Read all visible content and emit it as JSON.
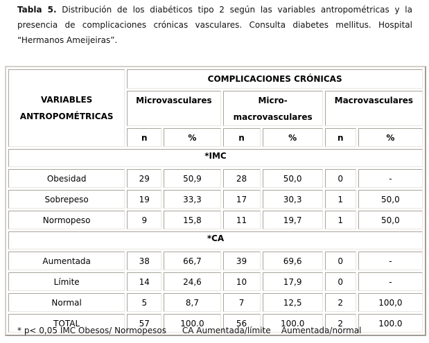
{
  "caption": {
    "label": "Tabla 5.",
    "text": " Distribución de los diabéticos tipo 2 según las variables antropométricas y la presencia de complicaciones crónicas vasculares. Consulta diabetes mellitus. Hospital “Hermanos Ameijeiras”."
  },
  "header": {
    "variables": "VARIABLES ANTROPOMÉTRICAS",
    "group": "COMPLICACIONES CRÓNICAS",
    "cols": [
      "Microvasculares",
      "Micro- macrovasculares",
      "Macrovasculares"
    ],
    "n": "n",
    "pct": "%"
  },
  "sections": [
    {
      "title": "*IMC",
      "rows": [
        [
          "Obesidad",
          "29",
          "50,9",
          "28",
          "50,0",
          "0",
          "-"
        ],
        [
          "Sobrepeso",
          "19",
          "33,3",
          "17",
          "30,3",
          "1",
          "50,0"
        ],
        [
          "Normopeso",
          "9",
          "15,8",
          "11",
          "19,7",
          "1",
          "50,0"
        ]
      ]
    },
    {
      "title": "*CA",
      "rows": [
        [
          "Aumentada",
          "38",
          "66,7",
          "39",
          "69,6",
          "0",
          "-"
        ],
        [
          "Límite",
          "14",
          "24,6",
          "10",
          "17,9",
          "0",
          "-"
        ],
        [
          "Normal",
          "5",
          "8,7",
          "7",
          "12,5",
          "2",
          "100,0"
        ],
        [
          "TOTAL",
          "57",
          "100.0",
          "56",
          "100.0",
          "2",
          "100.0"
        ]
      ]
    }
  ],
  "footnote": "* p< 0,05 IMC Obesos/ Normopesos      CA Aumentada/límite    Aumentada/normal"
}
